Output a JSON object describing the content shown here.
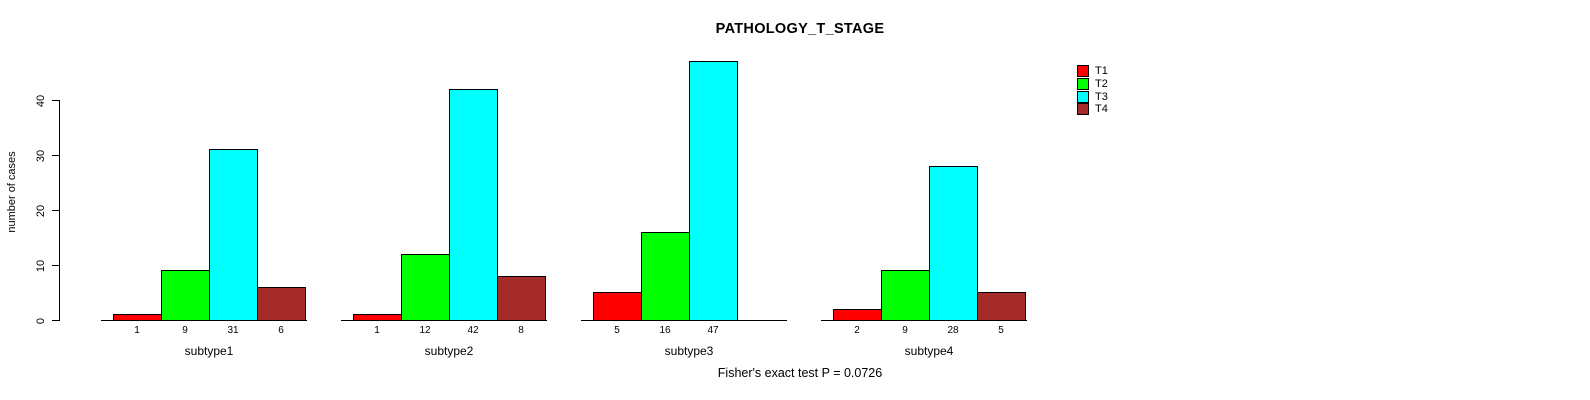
{
  "title": "PATHOLOGY_T_STAGE",
  "footer": "Fisher's exact test P = 0.0726",
  "chart_data": {
    "type": "bar",
    "title": "PATHOLOGY_T_STAGE",
    "xlabel": "",
    "ylabel": "number of cases",
    "categories": [
      "subtype1",
      "subtype2",
      "subtype3",
      "subtype4"
    ],
    "series": [
      {
        "name": "T1",
        "color": "#ff0000",
        "values": [
          1,
          1,
          5,
          2
        ]
      },
      {
        "name": "T2",
        "color": "#00ff00",
        "values": [
          9,
          12,
          16,
          9
        ]
      },
      {
        "name": "T3",
        "color": "#00ffff",
        "values": [
          31,
          42,
          47,
          28
        ]
      },
      {
        "name": "T4",
        "color": "#a52a2a",
        "values": [
          6,
          8,
          0,
          5
        ]
      }
    ],
    "yticks": [
      0,
      10,
      20,
      30,
      40
    ],
    "ylim": [
      0,
      47
    ],
    "bar_value_labels": true,
    "zero_values_unlabeled": true,
    "grid": false,
    "legend_position": "top-right",
    "annotation": "Fisher's exact test P = 0.0726",
    "background_color": "#ffffff",
    "text_color": "#000000"
  }
}
